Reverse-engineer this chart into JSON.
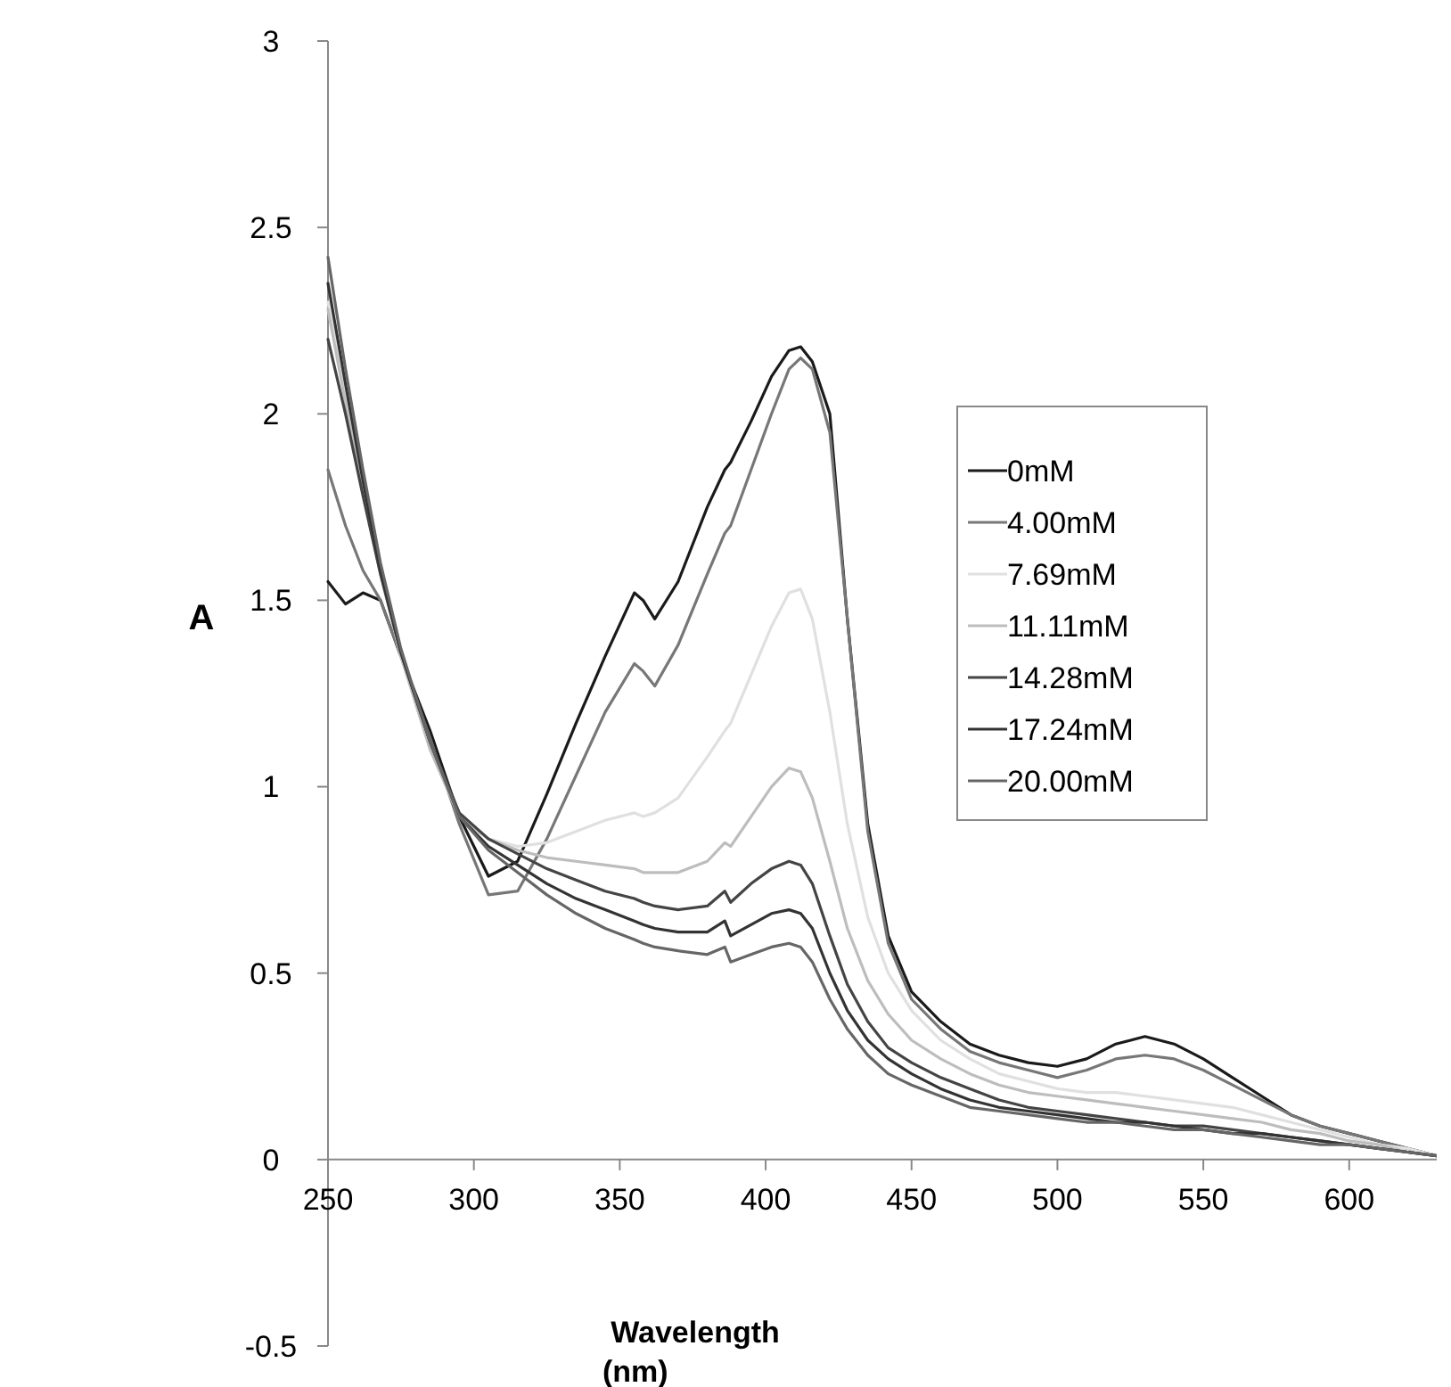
{
  "chart_data": {
    "type": "line",
    "xlabel": "Wavelength (nm)",
    "ylabel": "A",
    "x": [
      250,
      256,
      262,
      268,
      275,
      285,
      295,
      305,
      315,
      325,
      335,
      345,
      355,
      358,
      362,
      370,
      380,
      386,
      388,
      395,
      402,
      408,
      412,
      416,
      422,
      428,
      435,
      442,
      450,
      460,
      470,
      480,
      490,
      500,
      510,
      520,
      530,
      540,
      550,
      560,
      570,
      580,
      590,
      600,
      610,
      620,
      630
    ],
    "xlim": [
      250,
      630
    ],
    "xticks": [
      250,
      300,
      350,
      400,
      450,
      500,
      550,
      600
    ],
    "ylim": [
      -0.5,
      3
    ],
    "yticks": [
      -0.5,
      0,
      0.5,
      1,
      1.5,
      2,
      2.5,
      3
    ],
    "grid": false,
    "legend": "right",
    "marker": "none",
    "line_style": "solid",
    "series": [
      {
        "name": "0mM",
        "color": "#1a1a1a",
        "values": [
          1.55,
          1.49,
          1.52,
          1.5,
          1.35,
          1.15,
          0.92,
          0.76,
          0.8,
          0.98,
          1.17,
          1.35,
          1.52,
          1.5,
          1.45,
          1.55,
          1.75,
          1.85,
          1.87,
          1.98,
          2.1,
          2.17,
          2.18,
          2.14,
          2.0,
          1.45,
          0.9,
          0.6,
          0.45,
          0.37,
          0.31,
          0.28,
          0.26,
          0.25,
          0.27,
          0.31,
          0.33,
          0.31,
          0.27,
          0.22,
          0.17,
          0.12,
          0.09,
          0.07,
          0.05,
          0.03,
          0.01
        ]
      },
      {
        "name": "4.00mM",
        "color": "#777777",
        "values": [
          1.85,
          1.7,
          1.58,
          1.5,
          1.35,
          1.13,
          0.9,
          0.71,
          0.72,
          0.86,
          1.03,
          1.2,
          1.33,
          1.31,
          1.27,
          1.38,
          1.57,
          1.68,
          1.7,
          1.85,
          2.0,
          2.12,
          2.15,
          2.12,
          1.95,
          1.45,
          0.88,
          0.58,
          0.43,
          0.35,
          0.29,
          0.26,
          0.24,
          0.22,
          0.24,
          0.27,
          0.28,
          0.27,
          0.24,
          0.2,
          0.16,
          0.12,
          0.09,
          0.07,
          0.05,
          0.03,
          0.01
        ]
      },
      {
        "name": "7.69mM",
        "color": "#e0e0e0",
        "values": [
          2.3,
          2.05,
          1.8,
          1.58,
          1.35,
          1.1,
          0.92,
          0.86,
          0.84,
          0.85,
          0.88,
          0.91,
          0.93,
          0.92,
          0.93,
          0.97,
          1.08,
          1.15,
          1.17,
          1.3,
          1.43,
          1.52,
          1.53,
          1.45,
          1.2,
          0.9,
          0.65,
          0.5,
          0.4,
          0.32,
          0.27,
          0.23,
          0.21,
          0.19,
          0.18,
          0.18,
          0.17,
          0.16,
          0.15,
          0.14,
          0.12,
          0.1,
          0.08,
          0.06,
          0.04,
          0.03,
          0.01
        ]
      },
      {
        "name": "11.11mM",
        "color": "#bdbdbd",
        "values": [
          2.28,
          2.03,
          1.79,
          1.57,
          1.35,
          1.1,
          0.92,
          0.86,
          0.83,
          0.81,
          0.8,
          0.79,
          0.78,
          0.77,
          0.77,
          0.77,
          0.8,
          0.85,
          0.84,
          0.92,
          1.0,
          1.05,
          1.04,
          0.97,
          0.8,
          0.62,
          0.48,
          0.39,
          0.32,
          0.27,
          0.23,
          0.2,
          0.18,
          0.17,
          0.16,
          0.15,
          0.14,
          0.13,
          0.12,
          0.11,
          0.1,
          0.08,
          0.07,
          0.05,
          0.04,
          0.02,
          0.01
        ]
      },
      {
        "name": "14.28mM",
        "color": "#444444",
        "values": [
          2.2,
          2.0,
          1.78,
          1.57,
          1.36,
          1.12,
          0.93,
          0.86,
          0.82,
          0.78,
          0.75,
          0.72,
          0.7,
          0.69,
          0.68,
          0.67,
          0.68,
          0.72,
          0.69,
          0.74,
          0.78,
          0.8,
          0.79,
          0.74,
          0.6,
          0.47,
          0.37,
          0.3,
          0.26,
          0.22,
          0.19,
          0.16,
          0.14,
          0.13,
          0.12,
          0.11,
          0.1,
          0.09,
          0.09,
          0.08,
          0.07,
          0.06,
          0.05,
          0.04,
          0.03,
          0.02,
          0.01
        ]
      },
      {
        "name": "17.24mM",
        "color": "#333333",
        "values": [
          2.35,
          2.08,
          1.82,
          1.58,
          1.36,
          1.12,
          0.92,
          0.84,
          0.79,
          0.74,
          0.7,
          0.67,
          0.64,
          0.63,
          0.62,
          0.61,
          0.61,
          0.64,
          0.6,
          0.63,
          0.66,
          0.67,
          0.66,
          0.62,
          0.5,
          0.4,
          0.32,
          0.27,
          0.23,
          0.19,
          0.16,
          0.14,
          0.13,
          0.12,
          0.11,
          0.1,
          0.1,
          0.09,
          0.08,
          0.07,
          0.07,
          0.06,
          0.05,
          0.04,
          0.03,
          0.02,
          0.01
        ]
      },
      {
        "name": "20.00mM",
        "color": "#666666",
        "values": [
          2.42,
          2.12,
          1.85,
          1.6,
          1.37,
          1.12,
          0.92,
          0.83,
          0.77,
          0.71,
          0.66,
          0.62,
          0.59,
          0.58,
          0.57,
          0.56,
          0.55,
          0.57,
          0.53,
          0.55,
          0.57,
          0.58,
          0.57,
          0.53,
          0.43,
          0.35,
          0.28,
          0.23,
          0.2,
          0.17,
          0.14,
          0.13,
          0.12,
          0.11,
          0.1,
          0.1,
          0.09,
          0.08,
          0.08,
          0.07,
          0.06,
          0.05,
          0.04,
          0.04,
          0.03,
          0.02,
          0.01
        ]
      }
    ]
  }
}
